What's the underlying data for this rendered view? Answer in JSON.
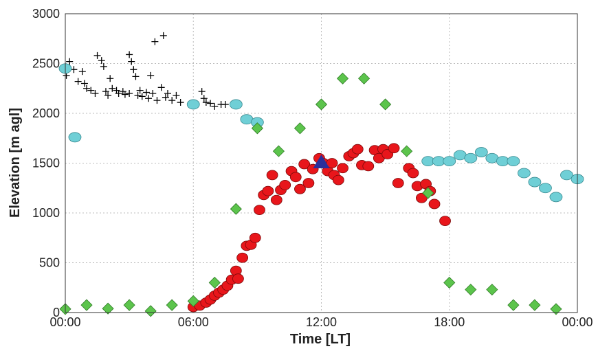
{
  "chart_data": {
    "type": "scatter",
    "xlabel": "Time [LT]",
    "ylabel": "Elevation [m agl]",
    "xlim": [
      0,
      24
    ],
    "ylim": [
      0,
      3000
    ],
    "xticks": [
      {
        "value": 0,
        "label": "00:00"
      },
      {
        "value": 6,
        "label": "06:00"
      },
      {
        "value": 12,
        "label": "12:00"
      },
      {
        "value": 18,
        "label": "18:00"
      },
      {
        "value": 24,
        "label": "00:00"
      }
    ],
    "yticks": [
      0,
      500,
      1000,
      1500,
      2000,
      2500,
      3000
    ],
    "grid": true,
    "series": [
      {
        "marker": "plus",
        "color": "#000000",
        "x": [
          0.05,
          0.1,
          0.2,
          0.4,
          0.6,
          0.8,
          0.9,
          1.0,
          1.2,
          1.4,
          1.5,
          1.7,
          1.8,
          1.9,
          2.0,
          2.1,
          2.2,
          2.4,
          2.5,
          2.7,
          2.8,
          3.0,
          3.0,
          3.1,
          3.2,
          3.3,
          3.4,
          3.5,
          3.6,
          3.8,
          3.9,
          4.0,
          4.1,
          4.2,
          4.3,
          4.5,
          4.6,
          4.7,
          4.8,
          5.0,
          5.2,
          5.4,
          6.4,
          6.5,
          6.6,
          6.8,
          7.0,
          7.3,
          7.5
        ],
        "values": [
          2380,
          2450,
          2520,
          2440,
          2320,
          2420,
          2300,
          2250,
          2230,
          2200,
          2580,
          2530,
          2470,
          2220,
          2180,
          2350,
          2250,
          2230,
          2200,
          2220,
          2190,
          2200,
          2590,
          2520,
          2440,
          2370,
          2180,
          2230,
          2170,
          2210,
          2150,
          2380,
          2200,
          2720,
          2130,
          2260,
          2780,
          2160,
          2200,
          2130,
          2180,
          2110,
          2220,
          2150,
          2110,
          2100,
          2070,
          2090,
          2090
        ]
      },
      {
        "marker": "ellipse",
        "color": "#6fcfd6",
        "x": [
          0,
          0.45,
          6.0,
          8.0,
          8.5,
          9.0,
          17,
          17.5,
          18,
          18.5,
          19,
          19.5,
          20,
          20.5,
          21,
          21.5,
          22,
          22.5,
          23,
          23.5,
          24
        ],
        "values": [
          2450,
          1760,
          2090,
          2090,
          1940,
          1910,
          1520,
          1520,
          1520,
          1580,
          1550,
          1610,
          1550,
          1520,
          1520,
          1400,
          1310,
          1250,
          1160,
          1380,
          1340
        ]
      },
      {
        "marker": "circle",
        "color": "#e8161b",
        "x": [
          6.0,
          6.3,
          6.6,
          6.8,
          7.0,
          7.2,
          7.4,
          7.6,
          7.8,
          8.0,
          8.1,
          8.3,
          8.5,
          8.7,
          8.9,
          9.1,
          9.3,
          9.5,
          9.7,
          9.9,
          10.1,
          10.3,
          10.6,
          10.8,
          11.0,
          11.2,
          11.4,
          11.6,
          11.9,
          12.1,
          12.3,
          12.5,
          12.6,
          12.8,
          13.0,
          13.3,
          13.5,
          13.7,
          13.9,
          14.2,
          14.5,
          14.7,
          14.9,
          15.1,
          15.4,
          15.6,
          16.1,
          16.3,
          16.5,
          16.7,
          16.9,
          17.1,
          17.3,
          17.8
        ],
        "values": [
          55,
          70,
          100,
          130,
          170,
          200,
          230,
          270,
          330,
          420,
          340,
          550,
          670,
          680,
          750,
          1030,
          1180,
          1220,
          1380,
          1130,
          1230,
          1280,
          1420,
          1360,
          1240,
          1490,
          1300,
          1440,
          1550,
          1500,
          1420,
          1500,
          1380,
          1330,
          1450,
          1570,
          1600,
          1640,
          1480,
          1470,
          1630,
          1550,
          1640,
          1590,
          1650,
          1300,
          1450,
          1400,
          1270,
          1150,
          1290,
          1220,
          1090,
          920
        ]
      },
      {
        "marker": "diamond",
        "color": "#5cc44c",
        "x": [
          0,
          1,
          2,
          3,
          4,
          5,
          6,
          7,
          8,
          9,
          10,
          11,
          12,
          13,
          14,
          15,
          16,
          17,
          18,
          19,
          20,
          21,
          22,
          23
        ],
        "values": [
          35,
          75,
          40,
          75,
          15,
          75,
          115,
          300,
          1040,
          1850,
          1620,
          1850,
          2090,
          2350,
          2350,
          2090,
          1620,
          1200,
          300,
          230,
          230,
          75,
          75,
          35
        ]
      },
      {
        "marker": "triangle",
        "color": "#2b2f9a",
        "x": [
          12.0
        ],
        "values": [
          1510
        ]
      }
    ]
  }
}
